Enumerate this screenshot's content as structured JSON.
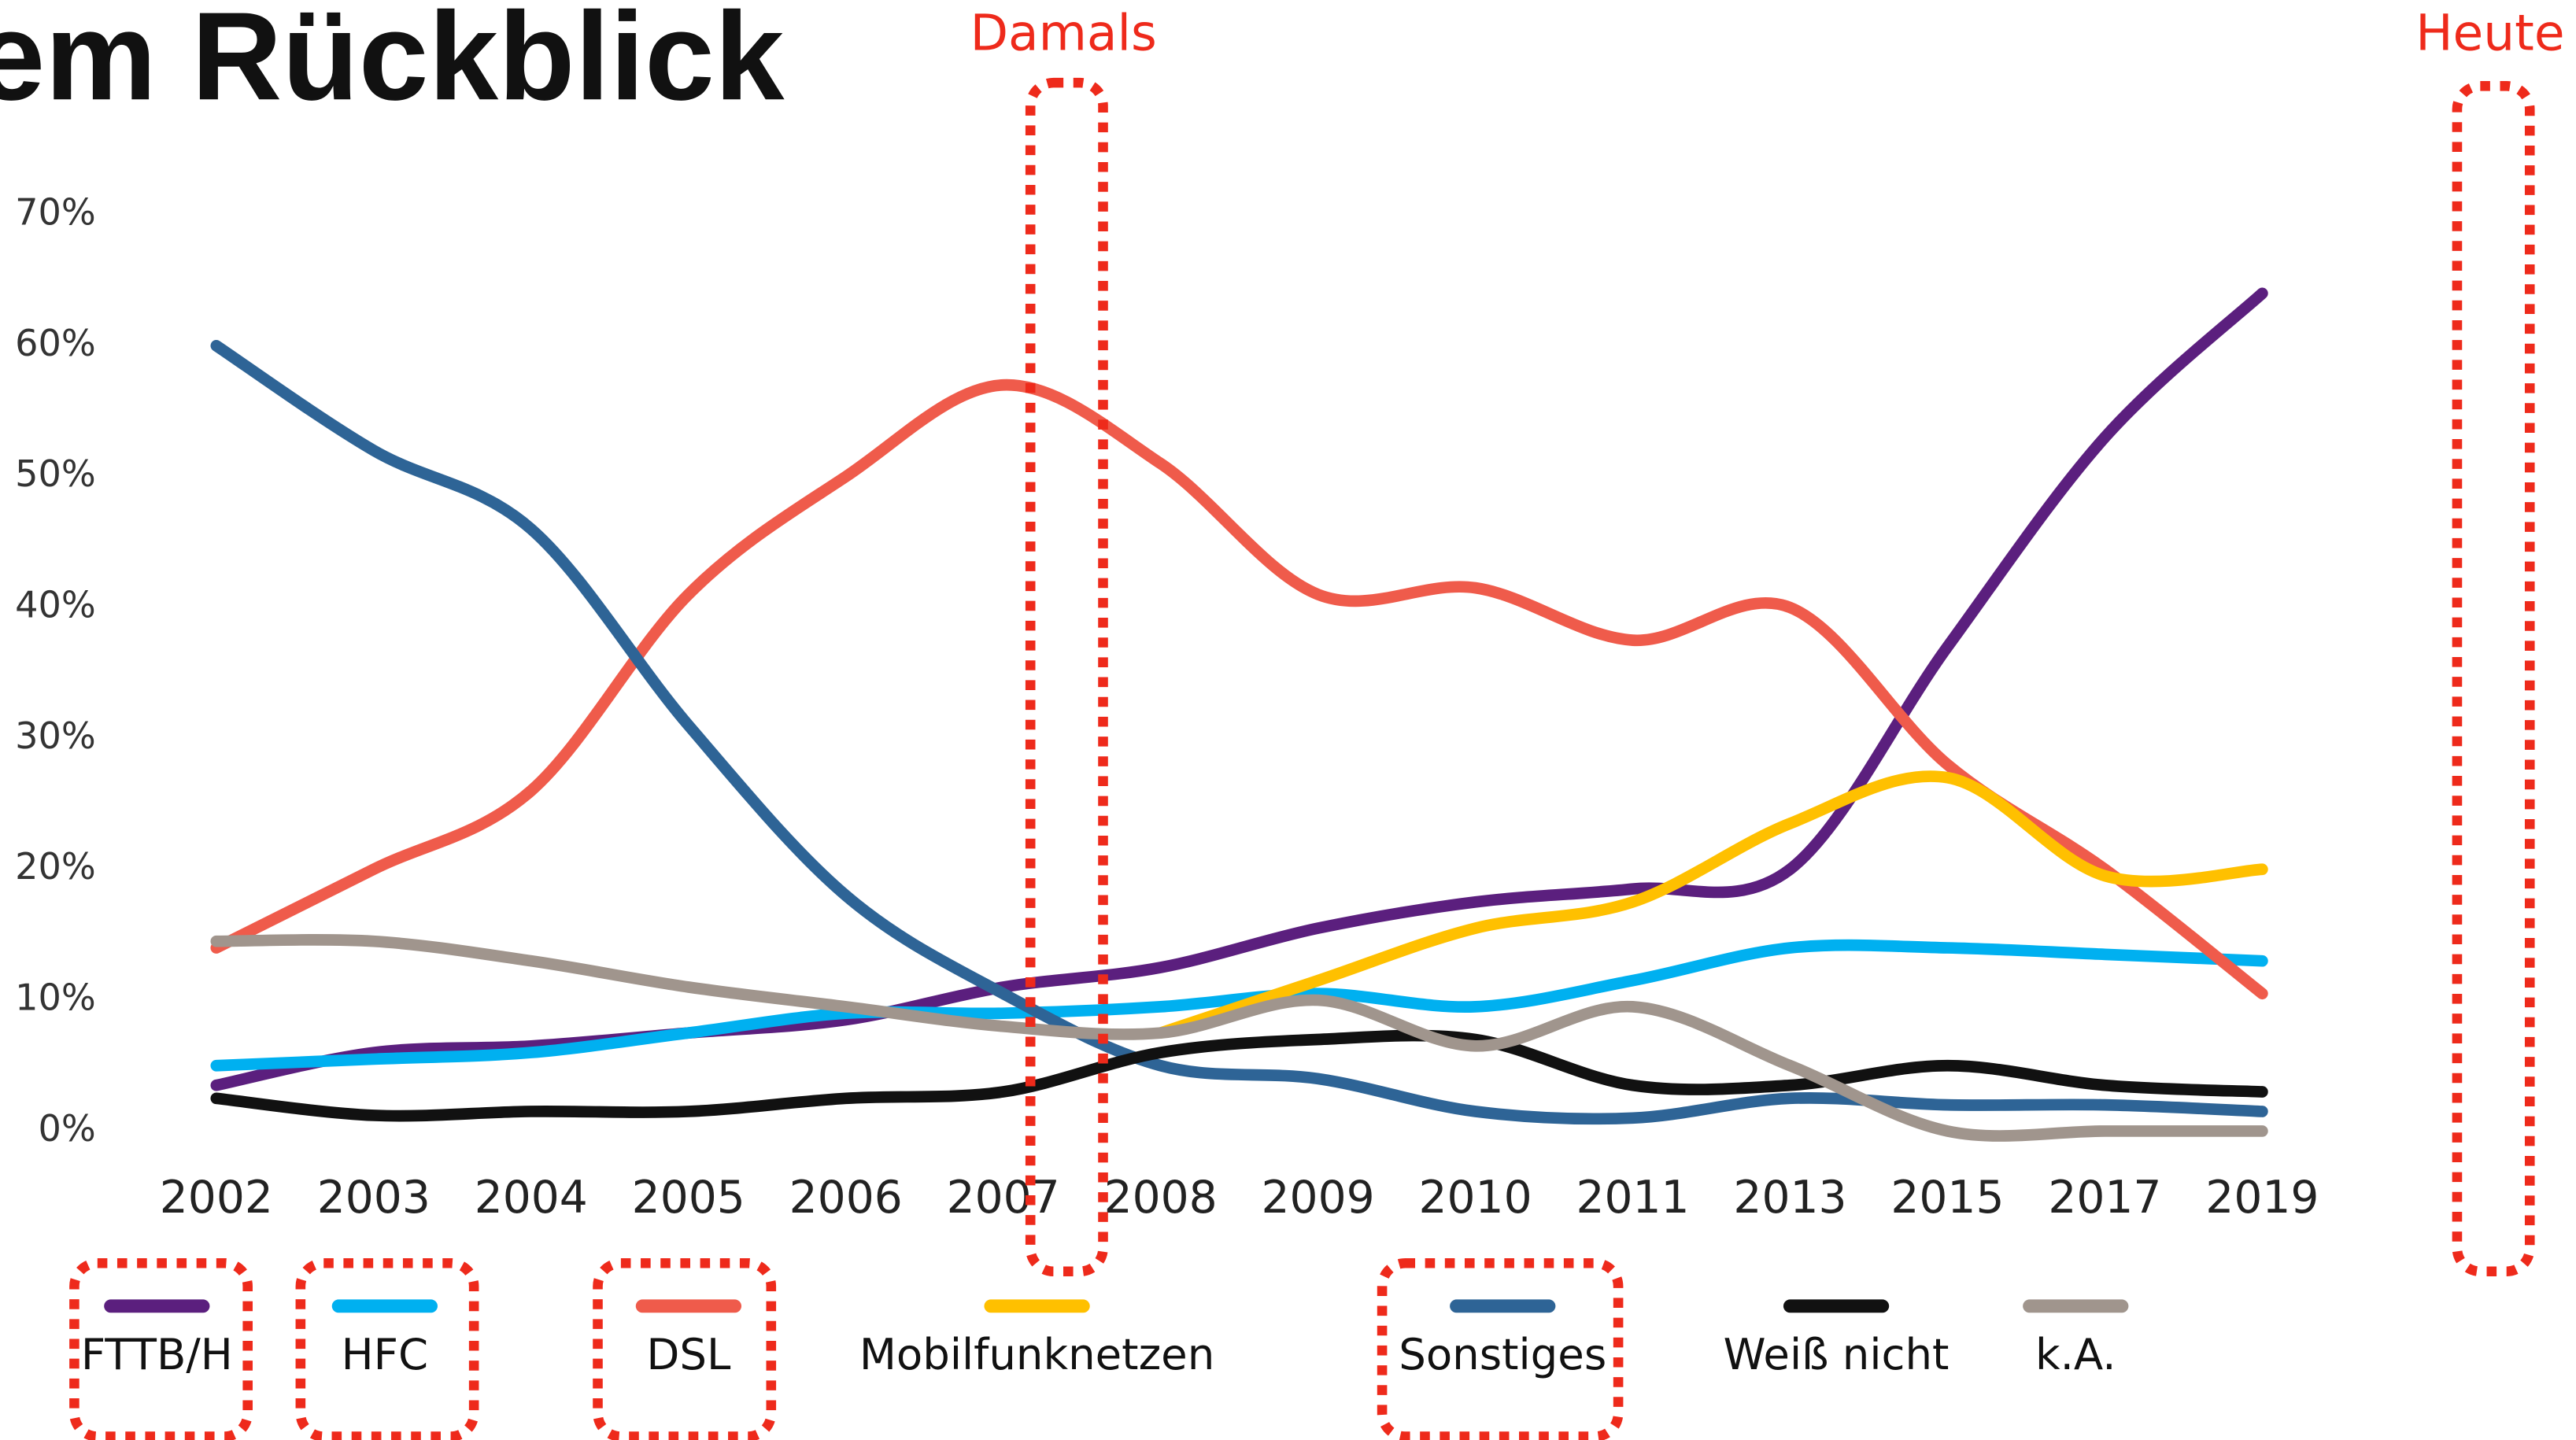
{
  "chart_data": {
    "type": "line",
    "title": "em Rückblick",
    "annotations": [
      "Damals",
      "Heute"
    ],
    "categories": [
      "2002",
      "2003",
      "2004",
      "2005",
      "2006",
      "2007",
      "2008",
      "2009",
      "2010",
      "2011",
      "2013",
      "2015",
      "2017",
      "2019"
    ],
    "ylim": [
      0,
      70
    ],
    "yticks": [
      {
        "value": 0,
        "label": "0%"
      },
      {
        "value": 10,
        "label": "10%"
      },
      {
        "value": 20,
        "label": "20%"
      },
      {
        "value": 30,
        "label": "30%"
      },
      {
        "value": 40,
        "label": "40%"
      },
      {
        "value": 50,
        "label": "50%"
      },
      {
        "value": 60,
        "label": "60%"
      },
      {
        "value": 70,
        "label": "70%"
      }
    ],
    "grid": false,
    "legend": "bottom",
    "series": [
      {
        "name": "FTTB/H",
        "color": "#5b1f7e",
        "values": [
          3.5,
          6,
          6.5,
          7.5,
          8.5,
          11,
          12.5,
          15.5,
          17.5,
          18.5,
          20,
          37,
          53,
          64
        ]
      },
      {
        "name": "HFC",
        "color": "#00b0f0",
        "values": [
          5,
          5.5,
          6,
          7.5,
          9,
          9,
          9.5,
          10.5,
          9.5,
          11.5,
          14,
          14,
          13.5,
          13
        ]
      },
      {
        "name": "DSL",
        "color": "#ef5b4b",
        "values": [
          14,
          20,
          26,
          41,
          50,
          57,
          51,
          41,
          41.5,
          37.5,
          40,
          28,
          20,
          10.5
        ]
      },
      {
        "name": "Mobilfunknetzen",
        "color": "#ffc000",
        "values": [
          null,
          null,
          null,
          null,
          null,
          null,
          7.5,
          11.5,
          15.5,
          17.5,
          23.5,
          27,
          19.5,
          20
        ]
      },
      {
        "name": "Sonstiges",
        "color": "#2e6496",
        "values": [
          60,
          52,
          46,
          31,
          18,
          10.5,
          5,
          4,
          1.5,
          1,
          2.5,
          2,
          2,
          1.5
        ]
      },
      {
        "name": "Weiß nicht",
        "color": "#111111",
        "values": [
          2.5,
          1.2,
          1.5,
          1.5,
          2.5,
          3,
          6,
          7,
          7,
          3.5,
          3.5,
          5,
          3.5,
          3
        ]
      },
      {
        "name": "k.A.",
        "color": "#a0958d",
        "values": [
          14.5,
          14.5,
          13,
          11,
          9.5,
          8,
          7.5,
          10,
          6.5,
          9.5,
          5,
          0,
          0,
          0
        ]
      }
    ]
  }
}
